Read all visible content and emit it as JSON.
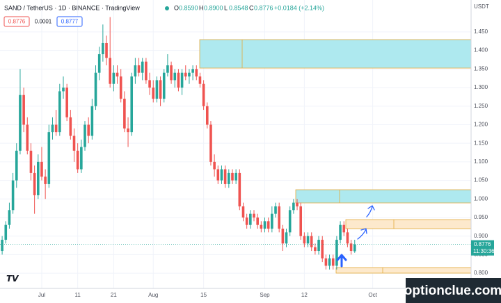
{
  "chart_data": {
    "type": "candlestick",
    "symbol": "SAND / TetherUS · 1D · BINANCE · TradingView",
    "ohlc_header": [
      {
        "label": "O",
        "value": "0.8590"
      },
      {
        "label": "H",
        "value": "0.8900"
      },
      {
        "label": "L",
        "value": "0.8548"
      },
      {
        "label": "C",
        "value": "0.8776"
      }
    ],
    "change": "+0.0184 (+2.14%)",
    "bid": "0.8776",
    "spread": "0.0001",
    "ask": "0.8777",
    "price_tag": "0.8776",
    "countdown": "11:30:36",
    "y_unit": "USDT",
    "watermark": "optionclue.com",
    "up_color": "#26a69a",
    "down_color": "#ef5350",
    "grid": true,
    "ylim": [
      0.759,
      1.536
    ],
    "yticks": [
      {
        "value": 0.8,
        "label": "0.800"
      },
      {
        "value": 0.85,
        "label": "0.850"
      },
      {
        "value": 0.9,
        "label": "0.900"
      },
      {
        "value": 0.95,
        "label": "0.950"
      },
      {
        "value": 1.0,
        "label": "1.000"
      },
      {
        "value": 1.05,
        "label": "1.050"
      },
      {
        "value": 1.1,
        "label": "1.100"
      },
      {
        "value": 1.15,
        "label": "1.150"
      },
      {
        "value": 1.2,
        "label": "1.200"
      },
      {
        "value": 1.25,
        "label": "1.250"
      },
      {
        "value": 1.3,
        "label": "1.300"
      },
      {
        "value": 1.35,
        "label": "1.350"
      },
      {
        "value": 1.4,
        "label": "1.400"
      },
      {
        "value": 1.45,
        "label": "1.450"
      }
    ],
    "categories": [
      null,
      null,
      null,
      null,
      null,
      null,
      null,
      null,
      null,
      null,
      null,
      "Jul",
      null,
      null,
      null,
      null,
      null,
      null,
      null,
      null,
      null,
      "11",
      null,
      null,
      null,
      null,
      null,
      null,
      null,
      null,
      null,
      "21",
      null,
      null,
      null,
      null,
      null,
      null,
      null,
      null,
      null,
      null,
      "Aug",
      null,
      null,
      null,
      null,
      null,
      null,
      null,
      null,
      null,
      null,
      null,
      null,
      null,
      "15",
      null,
      null,
      null,
      null,
      null,
      null,
      null,
      null,
      null,
      null,
      null,
      null,
      null,
      null,
      null,
      null,
      "Sep",
      null,
      null,
      null,
      null,
      null,
      null,
      null,
      null,
      null,
      null,
      "12",
      null,
      null,
      null,
      null,
      null,
      null,
      null,
      null,
      null,
      null,
      null,
      null,
      null,
      null,
      null,
      null,
      null,
      null,
      "Oct"
    ],
    "ohlc": [
      [
        0.86,
        0.9,
        0.85,
        0.89
      ],
      [
        0.89,
        0.94,
        0.88,
        0.93
      ],
      [
        0.93,
        0.99,
        0.92,
        0.97
      ],
      [
        0.97,
        1.07,
        0.96,
        1.05
      ],
      [
        1.05,
        1.15,
        1.03,
        1.13
      ],
      [
        1.13,
        1.35,
        1.12,
        1.28
      ],
      [
        1.28,
        1.3,
        1.18,
        1.2
      ],
      [
        1.2,
        1.22,
        1.12,
        1.13
      ],
      [
        1.13,
        1.15,
        1.05,
        1.07
      ],
      [
        1.07,
        1.09,
        0.96,
        1.01
      ],
      [
        1.01,
        1.12,
        1.0,
        1.1
      ],
      [
        1.1,
        1.14,
        1.05,
        1.06
      ],
      [
        1.06,
        1.08,
        1.0,
        1.04
      ],
      [
        1.04,
        1.2,
        1.03,
        1.18
      ],
      [
        1.18,
        1.22,
        1.16,
        1.2
      ],
      [
        1.2,
        1.24,
        1.17,
        1.18
      ],
      [
        1.18,
        1.31,
        1.17,
        1.29
      ],
      [
        1.29,
        1.33,
        1.27,
        1.3
      ],
      [
        1.3,
        1.31,
        1.21,
        1.22
      ],
      [
        1.22,
        1.24,
        1.16,
        1.17
      ],
      [
        1.17,
        1.19,
        1.1,
        1.13
      ],
      [
        1.13,
        1.15,
        1.07,
        1.08
      ],
      [
        1.08,
        1.16,
        1.07,
        1.14
      ],
      [
        1.14,
        1.21,
        1.13,
        1.2
      ],
      [
        1.2,
        1.22,
        1.15,
        1.17
      ],
      [
        1.17,
        1.27,
        1.16,
        1.25
      ],
      [
        1.25,
        1.36,
        1.24,
        1.34
      ],
      [
        1.34,
        1.41,
        1.32,
        1.39
      ],
      [
        1.39,
        1.47,
        1.37,
        1.42
      ],
      [
        1.42,
        1.44,
        1.36,
        1.38
      ],
      [
        1.38,
        1.49,
        1.3,
        1.31
      ],
      [
        1.31,
        1.36,
        1.29,
        1.34
      ],
      [
        1.34,
        1.36,
        1.31,
        1.33
      ],
      [
        1.33,
        1.35,
        1.26,
        1.27
      ],
      [
        1.27,
        1.29,
        1.18,
        1.19
      ],
      [
        1.19,
        1.22,
        1.14,
        1.18
      ],
      [
        1.18,
        1.34,
        1.17,
        1.33
      ],
      [
        1.33,
        1.38,
        1.31,
        1.36
      ],
      [
        1.36,
        1.38,
        1.33,
        1.34
      ],
      [
        1.34,
        1.38,
        1.32,
        1.37
      ],
      [
        1.37,
        1.38,
        1.31,
        1.32
      ],
      [
        1.32,
        1.34,
        1.28,
        1.3
      ],
      [
        1.3,
        1.32,
        1.26,
        1.27
      ],
      [
        1.27,
        1.33,
        1.26,
        1.32
      ],
      [
        1.32,
        1.33,
        1.25,
        1.27
      ],
      [
        1.27,
        1.35,
        1.26,
        1.34
      ],
      [
        1.34,
        1.39,
        1.33,
        1.36
      ],
      [
        1.36,
        1.37,
        1.31,
        1.32
      ],
      [
        1.32,
        1.35,
        1.3,
        1.34
      ],
      [
        1.34,
        1.35,
        1.29,
        1.3
      ],
      [
        1.3,
        1.35,
        1.28,
        1.34
      ],
      [
        1.34,
        1.36,
        1.32,
        1.33
      ],
      [
        1.33,
        1.35,
        1.31,
        1.34
      ],
      [
        1.34,
        1.36,
        1.32,
        1.35
      ],
      [
        1.35,
        1.36,
        1.32,
        1.33
      ],
      [
        1.33,
        1.34,
        1.3,
        1.31
      ],
      [
        1.31,
        1.32,
        1.24,
        1.25
      ],
      [
        1.25,
        1.26,
        1.19,
        1.2
      ],
      [
        1.2,
        1.21,
        1.09,
        1.1
      ],
      [
        1.1,
        1.12,
        1.06,
        1.08
      ],
      [
        1.08,
        1.09,
        1.04,
        1.05
      ],
      [
        1.05,
        1.09,
        1.04,
        1.08
      ],
      [
        1.08,
        1.09,
        1.03,
        1.04
      ],
      [
        1.04,
        1.08,
        1.03,
        1.07
      ],
      [
        1.07,
        1.08,
        1.04,
        1.05
      ],
      [
        1.05,
        1.08,
        1.04,
        1.07
      ],
      [
        1.07,
        1.08,
        0.97,
        0.98
      ],
      [
        0.98,
        0.99,
        0.94,
        0.95
      ],
      [
        0.95,
        0.96,
        0.92,
        0.93
      ],
      [
        0.93,
        0.97,
        0.92,
        0.96
      ],
      [
        0.96,
        0.97,
        0.94,
        0.95
      ],
      [
        0.95,
        0.96,
        0.92,
        0.93
      ],
      [
        0.93,
        0.94,
        0.91,
        0.92
      ],
      [
        0.92,
        0.95,
        0.91,
        0.94
      ],
      [
        0.94,
        0.95,
        0.91,
        0.92
      ],
      [
        0.92,
        0.98,
        0.91,
        0.96
      ],
      [
        0.96,
        0.99,
        0.95,
        0.98
      ],
      [
        0.98,
        0.99,
        0.91,
        0.92
      ],
      [
        0.92,
        0.93,
        0.86,
        0.88
      ],
      [
        0.88,
        0.92,
        0.87,
        0.91
      ],
      [
        0.91,
        0.98,
        0.9,
        0.97
      ],
      [
        0.97,
        1.0,
        0.96,
        0.99
      ],
      [
        0.99,
        1.0,
        0.97,
        0.98
      ],
      [
        0.98,
        0.99,
        0.89,
        0.9
      ],
      [
        0.9,
        0.91,
        0.87,
        0.88
      ],
      [
        0.88,
        0.91,
        0.87,
        0.9
      ],
      [
        0.9,
        0.91,
        0.86,
        0.87
      ],
      [
        0.87,
        0.88,
        0.85,
        0.86
      ],
      [
        0.86,
        0.9,
        0.85,
        0.89
      ],
      [
        0.89,
        0.9,
        0.83,
        0.84
      ],
      [
        0.84,
        0.85,
        0.81,
        0.82
      ],
      [
        0.82,
        0.85,
        0.81,
        0.84
      ],
      [
        0.84,
        0.85,
        0.81,
        0.82
      ],
      [
        0.82,
        0.9,
        0.81,
        0.89
      ],
      [
        0.89,
        0.94,
        0.88,
        0.93
      ],
      [
        0.93,
        0.94,
        0.9,
        0.91
      ],
      [
        0.91,
        0.92,
        0.87,
        0.88
      ],
      [
        0.88,
        0.89,
        0.85,
        0.86
      ],
      [
        0.859,
        0.89,
        0.8548,
        0.8776
      ],
      null,
      null,
      null,
      null,
      null
    ]
  }
}
